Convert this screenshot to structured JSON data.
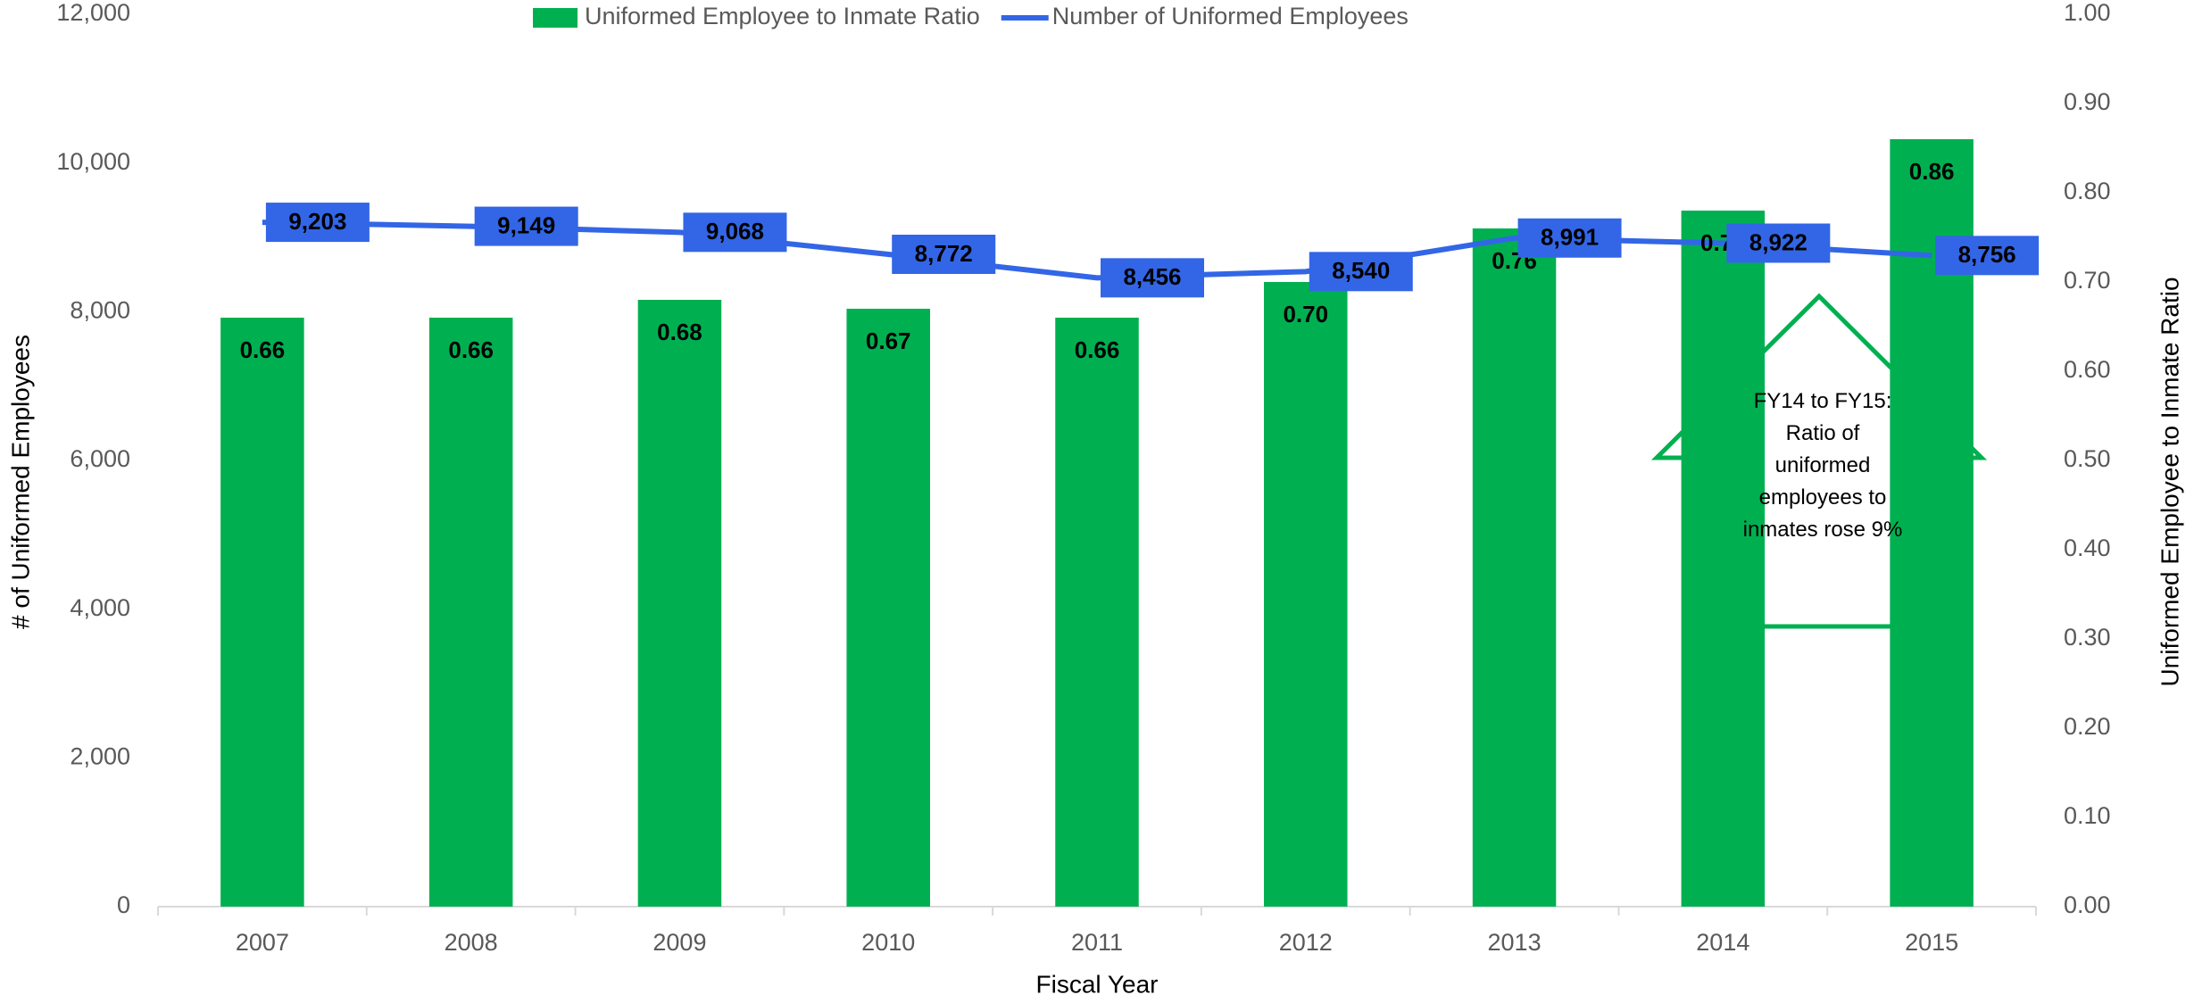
{
  "chart_data": {
    "type": "bar",
    "categories": [
      "2007",
      "2008",
      "2009",
      "2010",
      "2011",
      "2012",
      "2013",
      "2014",
      "2015"
    ],
    "series": [
      {
        "name": "Uniformed Employee to Inmate Ratio",
        "type": "bar",
        "axis": "y2",
        "color": "#00b050",
        "values": [
          0.66,
          0.66,
          0.68,
          0.67,
          0.66,
          0.7,
          0.76,
          0.78,
          0.86
        ],
        "value_labels": [
          "0.66",
          "0.66",
          "0.68",
          "0.67",
          "0.66",
          "0.70",
          "0.76",
          "0.78",
          "0.86"
        ]
      },
      {
        "name": "Number of Uniformed Employees",
        "type": "line",
        "axis": "y",
        "color": "#3366e6",
        "values": [
          9203,
          9149,
          9068,
          8772,
          8456,
          8540,
          8991,
          8922,
          8756
        ],
        "value_labels": [
          "9,203",
          "9,149",
          "9,068",
          "8,772",
          "8,456",
          "8,540",
          "8,991",
          "8,922",
          "8,756"
        ]
      }
    ],
    "ylabel": "# of Uniformed Employees",
    "y2label": "Uniformed Employee to Inmate Ratio",
    "xlabel": "Fiscal Year",
    "ylim": [
      0,
      12000
    ],
    "yticks": [
      0,
      {
        "value": 2000,
        "label": "2,000"
      },
      {
        "value": 4000,
        "label": "4,000"
      },
      {
        "value": 6000,
        "label": "6,000"
      },
      {
        "value": 8000,
        "label": "8,000"
      },
      {
        "value": 10000,
        "label": "10,000"
      },
      {
        "value": 12000,
        "label": "12,000"
      }
    ],
    "y2lim": [
      0,
      1
    ],
    "y2ticks": [
      {
        "value": 0,
        "label": "0.00"
      },
      {
        "value": 0.1,
        "label": "0.10"
      },
      {
        "value": 0.2,
        "label": "0.20"
      },
      {
        "value": 0.3,
        "label": "0.30"
      },
      {
        "value": 0.4,
        "label": "0.40"
      },
      {
        "value": 0.5,
        "label": "0.50"
      },
      {
        "value": 0.6,
        "label": "0.60"
      },
      {
        "value": 0.7,
        "label": "0.70"
      },
      {
        "value": 0.8,
        "label": "0.80"
      },
      {
        "value": 0.9,
        "label": "0.90"
      },
      {
        "value": 1,
        "label": "1.00"
      }
    ],
    "grid": false,
    "legend": "top",
    "annotation": "FY14 to FY15: Ratio of uniformed employees to inmates rose 9%"
  }
}
